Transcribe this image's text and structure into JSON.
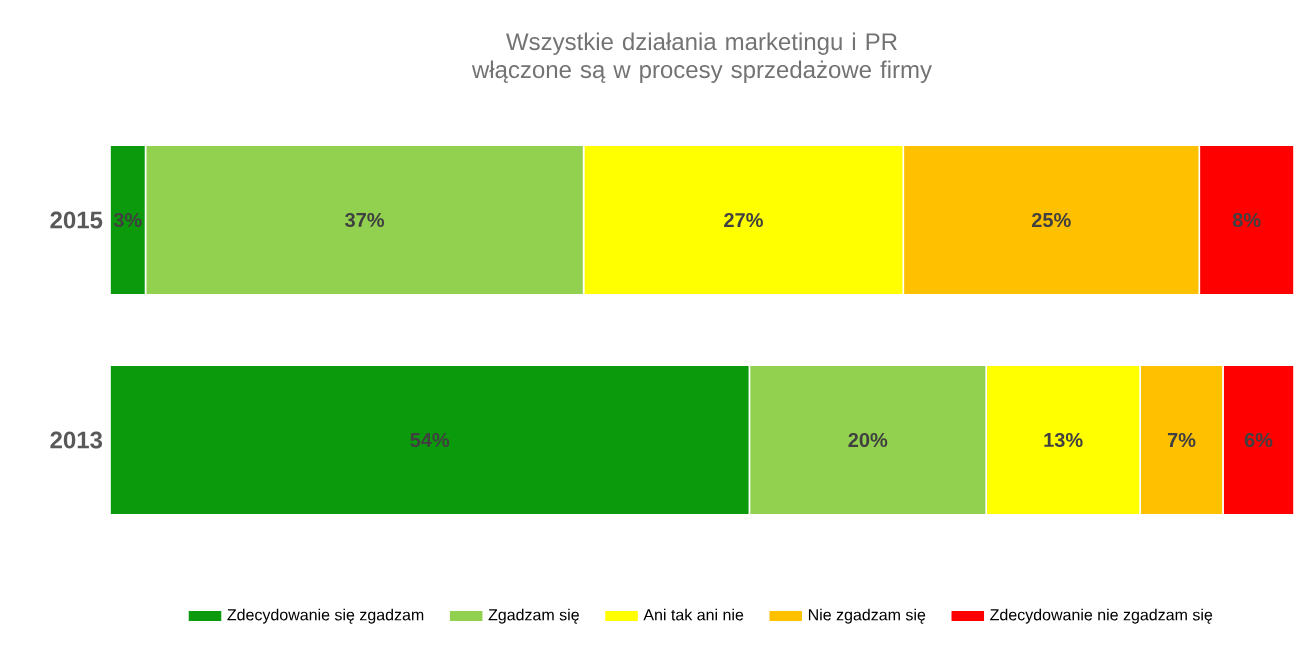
{
  "chart_data": {
    "type": "bar",
    "orientation": "horizontal",
    "stacked": true,
    "title": "Wszystkie działania marketingu i PR włączone są w procesy sprzedażowe firmy",
    "categories": [
      "2015",
      "2013"
    ],
    "legend": "bottom",
    "series": [
      {
        "name": "Zdecydowanie się zgadzam",
        "color": "#0b9a0b",
        "values": [
          3,
          54
        ],
        "value_labels": [
          "3%",
          "54%"
        ]
      },
      {
        "name": "Zgadzam się",
        "color": "#92d050",
        "values": [
          37,
          20
        ],
        "value_labels": [
          "37%",
          "20%"
        ]
      },
      {
        "name": "Ani tak ani nie",
        "color": "#ffff00",
        "values": [
          27,
          13
        ],
        "value_labels": [
          "27%",
          "13%"
        ]
      },
      {
        "name": "Nie zgadzam się",
        "color": "#ffc000",
        "values": [
          25,
          7
        ],
        "value_labels": [
          "25%",
          "7%"
        ]
      },
      {
        "name": "Zdecydowanie nie zgadzam się",
        "color": "#ff0000",
        "values": [
          8,
          6
        ],
        "value_labels": [
          "8%",
          "6%"
        ]
      }
    ]
  }
}
